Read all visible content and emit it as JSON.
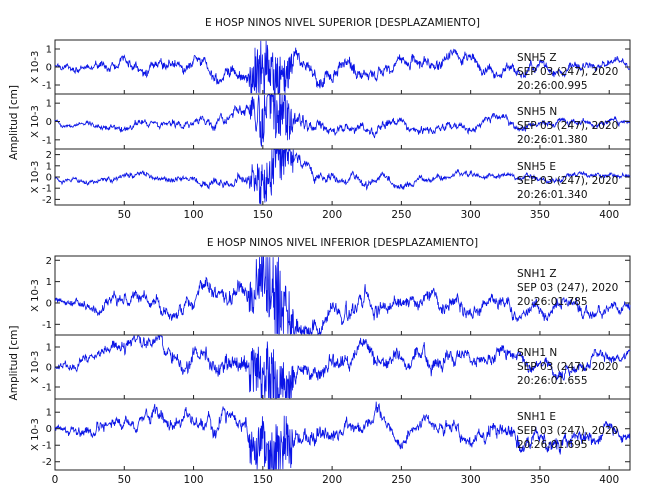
{
  "figure": {
    "ylabel": "Amplitud [cm]",
    "xticks": [
      50,
      100,
      150,
      200,
      250,
      300,
      350,
      400
    ],
    "xlim": [
      0,
      415
    ],
    "colors": {
      "trace": "#0a14e6",
      "axes": "#222222"
    }
  },
  "chart_data": [
    {
      "type": "line",
      "title": "E HOSP NINOS NIVEL SUPERIOR [DESPLAZAMIENTO]",
      "xlim": [
        0,
        415
      ],
      "xticks": [
        50,
        100,
        150,
        200,
        250,
        300,
        350,
        400
      ],
      "ylabel": "Amplitud [cm]",
      "panels": [
        {
          "scale": "X 10-3",
          "ylim": [
            -1.5,
            1.5
          ],
          "yticks": [
            -1,
            0,
            1
          ],
          "annotation": [
            "SNH5   Z",
            "SEP 03 (247), 2020",
            "20:26:00.995"
          ],
          "envelope": {
            "x": [
              0,
              50,
              100,
              140,
              150,
              160,
              170,
              200,
              250,
              300,
              350,
              400,
              415
            ],
            "amp": [
              0.3,
              0.5,
              0.6,
              0.9,
              1.4,
              1.5,
              0.9,
              0.8,
              0.7,
              0.6,
              0.5,
              0.4,
              0.3
            ]
          }
        },
        {
          "scale": "X 10-3",
          "ylim": [
            -1.5,
            1.5
          ],
          "yticks": [
            -1,
            0,
            1
          ],
          "annotation": [
            "SNH5   N",
            "SEP 03 (247), 2020",
            "20:26:01.380"
          ],
          "envelope": {
            "x": [
              0,
              50,
              100,
              140,
              150,
              160,
              170,
              200,
              250,
              300,
              350,
              400,
              415
            ],
            "amp": [
              0.2,
              0.35,
              0.4,
              0.6,
              1.2,
              1.5,
              0.8,
              0.5,
              0.45,
              0.4,
              0.35,
              0.3,
              0.2
            ]
          }
        },
        {
          "scale": "X 10-3",
          "ylim": [
            -2.5,
            2.5
          ],
          "yticks": [
            -2,
            -1,
            0,
            1,
            2
          ],
          "annotation": [
            "SNH5   E",
            "SEP 03 (247), 2020",
            "20:26:01.340"
          ],
          "envelope": {
            "x": [
              0,
              50,
              100,
              140,
              150,
              160,
              170,
              200,
              250,
              300,
              350,
              400,
              415
            ],
            "amp": [
              0.3,
              0.5,
              0.6,
              0.9,
              1.8,
              2.4,
              1.2,
              0.8,
              0.6,
              0.5,
              0.45,
              0.4,
              0.3
            ]
          }
        }
      ]
    },
    {
      "type": "line",
      "title": "E HOSP NINOS NIVEL INFERIOR [DESPLAZAMIENTO]",
      "xlim": [
        0,
        415
      ],
      "xticks": [
        0,
        50,
        100,
        150,
        200,
        250,
        300,
        350,
        400
      ],
      "ylabel": "Amplitud [cm]",
      "panels": [
        {
          "scale": "X 10-3",
          "ylim": [
            -1.5,
            2.2
          ],
          "yticks": [
            -1,
            0,
            1,
            2
          ],
          "annotation": [
            "SNH1   Z",
            "SEP 03 (247), 2020",
            "20:26:01.785"
          ],
          "envelope": {
            "x": [
              0,
              50,
              100,
              140,
              150,
              160,
              170,
              200,
              250,
              300,
              350,
              400,
              415
            ],
            "amp": [
              0.4,
              0.6,
              0.7,
              0.9,
              1.3,
              2.0,
              1.1,
              0.8,
              0.7,
              0.6,
              0.55,
              0.5,
              0.4
            ]
          }
        },
        {
          "scale": "X 10-3",
          "ylim": [
            -1.6,
            1.6
          ],
          "yticks": [
            -1,
            0,
            1
          ],
          "annotation": [
            "SNH1   N",
            "SEP 03 (247), 2020",
            "20:26:01.655"
          ],
          "envelope": {
            "x": [
              0,
              50,
              100,
              140,
              150,
              160,
              170,
              200,
              250,
              300,
              350,
              400,
              415
            ],
            "amp": [
              0.4,
              0.7,
              0.8,
              1.0,
              1.3,
              1.6,
              1.0,
              0.8,
              0.75,
              0.7,
              0.6,
              0.5,
              0.4
            ]
          }
        },
        {
          "scale": "X 10-3",
          "ylim": [
            -2.5,
            1.8
          ],
          "yticks": [
            -2,
            -1,
            0,
            1
          ],
          "annotation": [
            "SNH1   E",
            "SEP 03 (247), 2020",
            "20:26:01.695"
          ],
          "envelope": {
            "x": [
              0,
              50,
              100,
              140,
              150,
              160,
              170,
              200,
              250,
              300,
              350,
              400,
              415
            ],
            "amp": [
              0.5,
              0.7,
              0.8,
              1.0,
              1.4,
              2.1,
              1.2,
              0.9,
              0.8,
              0.9,
              1.0,
              0.8,
              0.6
            ]
          }
        }
      ]
    }
  ]
}
